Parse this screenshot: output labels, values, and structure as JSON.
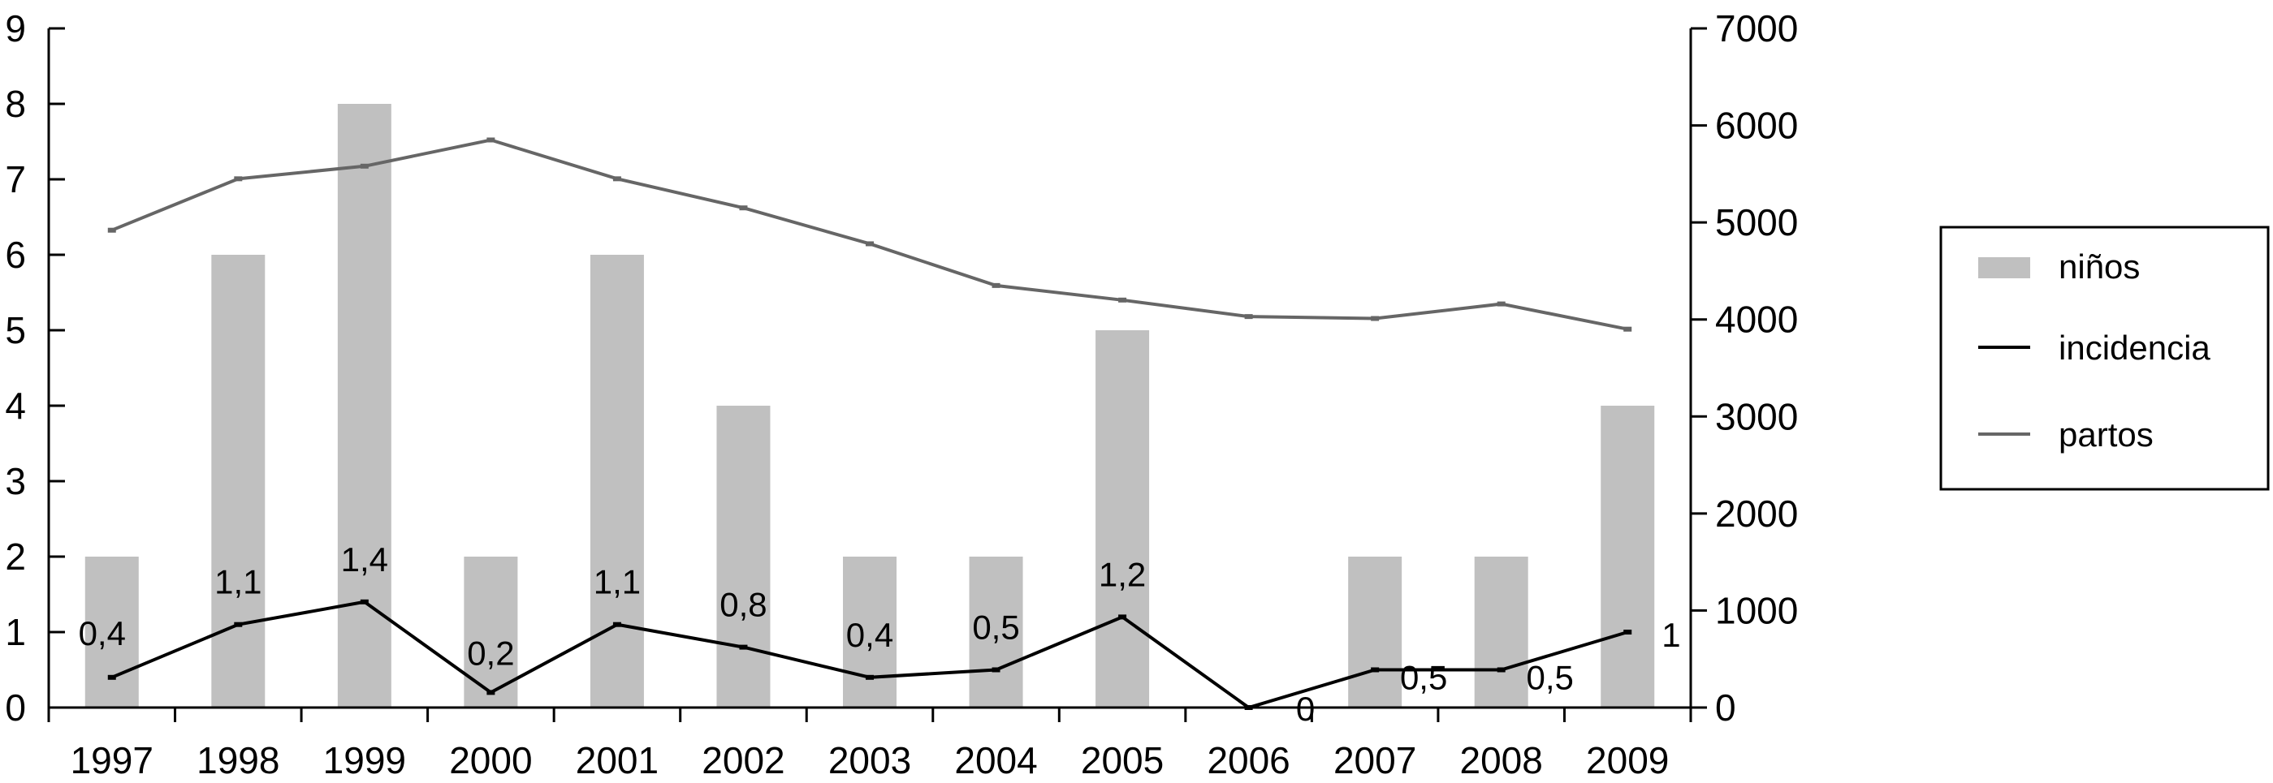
{
  "chart_data": {
    "type": "bar+line",
    "categories": [
      "1997",
      "1998",
      "1999",
      "2000",
      "2001",
      "2002",
      "2003",
      "2004",
      "2005",
      "2006",
      "2007",
      "2008",
      "2009"
    ],
    "series": [
      {
        "name": "niños",
        "type": "bar",
        "axis": "left",
        "color": "#c0c0c0",
        "values": [
          2,
          6,
          8,
          2,
          6,
          4,
          2,
          2,
          5,
          0,
          2,
          2,
          4
        ]
      },
      {
        "name": "incidencia",
        "type": "line",
        "axis": "left",
        "color": "#000000",
        "values": [
          0.4,
          1.1,
          1.4,
          0.2,
          1.1,
          0.8,
          0.4,
          0.5,
          1.2,
          0,
          0.5,
          0.5,
          1
        ],
        "labels": [
          "0,4",
          "1,1",
          "1,4",
          "0,2",
          "1,1",
          "0,8",
          "0,4",
          "0,5",
          "1,2",
          "0",
          "0,5",
          "0,5",
          "1"
        ]
      },
      {
        "name": "partos",
        "type": "line",
        "axis": "right",
        "color": "#666666",
        "values": [
          4920,
          5450,
          5580,
          5850,
          5450,
          5150,
          4780,
          4350,
          4200,
          4030,
          4010,
          4160,
          3900
        ]
      }
    ],
    "y_left": {
      "min": 0,
      "max": 9,
      "ticks": [
        "0",
        "1",
        "2",
        "3",
        "4",
        "5",
        "6",
        "7",
        "8",
        "9"
      ]
    },
    "y_right": {
      "min": 0,
      "max": 7000,
      "ticks": [
        "0",
        "1000",
        "2000",
        "3000",
        "4000",
        "5000",
        "6000",
        "7000"
      ]
    },
    "legend": {
      "position": "right",
      "items": [
        "niños",
        "incidencia",
        "partos"
      ]
    },
    "grid": false
  }
}
